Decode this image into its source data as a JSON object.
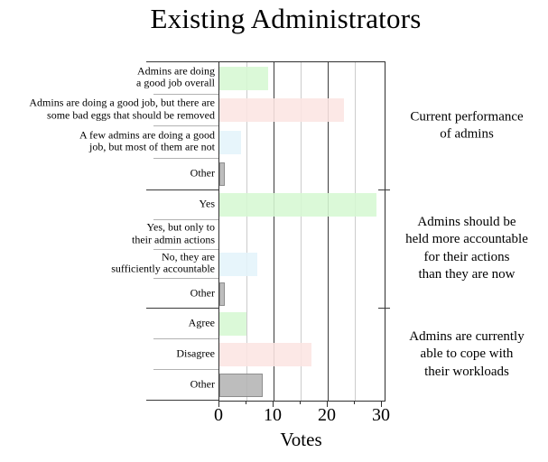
{
  "title": "Existing Administrators",
  "xlabel": "Votes",
  "colors": {
    "green": "#d6f8d3",
    "pink": "#fce5e3",
    "blue": "#e4f4fb",
    "gray": "#b5b5b5",
    "gray_border": "#7f7f7f",
    "major_grid": "#3c3c3c",
    "minor_grid": "#cccccc",
    "frame": "#2f2f2f"
  },
  "axis": {
    "major_ticks": [
      0,
      10,
      20,
      30
    ],
    "minor_ticks": [
      5,
      15,
      25
    ],
    "major_gridlines": [
      10,
      20
    ],
    "xmin": 0,
    "xmax": 30.5
  },
  "chart_data": {
    "type": "bar",
    "orientation": "horizontal",
    "title": "Existing Administrators",
    "xlabel": "Votes",
    "xlim": [
      0,
      30.5
    ],
    "grid": true,
    "groups": [
      {
        "label": "Current performance\nof admins",
        "bars": [
          {
            "category": "Admins are doing\na good job overall",
            "value": 9,
            "color": "green"
          },
          {
            "category": "Admins are doing a good job, but there are\nsome bad eggs that should be removed",
            "value": 23,
            "color": "pink"
          },
          {
            "category": "A few admins are doing a good\njob, but most of them are not",
            "value": 4,
            "color": "blue"
          },
          {
            "category": "Other",
            "value": 1,
            "color": "gray"
          }
        ]
      },
      {
        "label": "Admins should be\nheld more accountable\nfor their actions\nthan they are now",
        "bars": [
          {
            "category": "Yes",
            "value": 29,
            "color": "green"
          },
          {
            "category": "Yes, but only to\ntheir admin actions",
            "value": 0,
            "color": "green"
          },
          {
            "category": "No, they are\nsufficiently accountable",
            "value": 7,
            "color": "blue"
          },
          {
            "category": "Other",
            "value": 1,
            "color": "gray"
          }
        ]
      },
      {
        "label": "Admins are currently\nable to cope with\ntheir workloads",
        "bars": [
          {
            "category": "Agree",
            "value": 5,
            "color": "green"
          },
          {
            "category": "Disagree",
            "value": 17,
            "color": "pink"
          },
          {
            "category": "Other",
            "value": 8,
            "color": "gray"
          }
        ]
      }
    ]
  }
}
